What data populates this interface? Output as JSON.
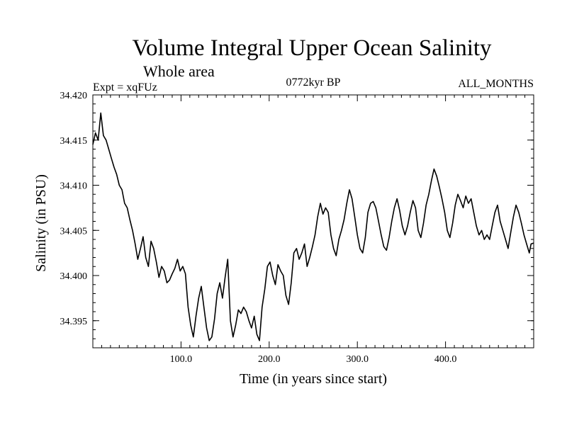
{
  "chart_data": {
    "type": "line",
    "title": "Volume Integral Upper Ocean Salinity",
    "subtitle": "Whole area",
    "expt_label": "Expt = xqFUz",
    "period_label": "0772kyr BP",
    "months_label": "ALL_MONTHS",
    "xlabel": "Time (in years since start)",
    "ylabel": "Salinity (in PSU)",
    "xlim": [
      0,
      500
    ],
    "ylim": [
      34.392,
      34.42
    ],
    "x_ticks": [
      100,
      200,
      300,
      400
    ],
    "x_tick_labels": [
      "100.0",
      "200.0",
      "300.0",
      "400.0"
    ],
    "y_ticks": [
      34.395,
      34.4,
      34.405,
      34.41,
      34.415,
      34.42
    ],
    "y_tick_labels": [
      "34.395",
      "34.400",
      "34.405",
      "34.410",
      "34.415",
      "34.420"
    ],
    "series": [
      {
        "name": "Salinity",
        "color": "#000000",
        "points": [
          [
            0,
            34.4145
          ],
          [
            3,
            34.4158
          ],
          [
            6,
            34.415
          ],
          [
            9,
            34.418
          ],
          [
            12,
            34.4155
          ],
          [
            15,
            34.415
          ],
          [
            18,
            34.414
          ],
          [
            21,
            34.413
          ],
          [
            24,
            34.412
          ],
          [
            27,
            34.4112
          ],
          [
            30,
            34.41
          ],
          [
            33,
            34.4095
          ],
          [
            36,
            34.408
          ],
          [
            39,
            34.4075
          ],
          [
            42,
            34.4062
          ],
          [
            45,
            34.405
          ],
          [
            48,
            34.4035
          ],
          [
            51,
            34.4018
          ],
          [
            54,
            34.403
          ],
          [
            57,
            34.4043
          ],
          [
            60,
            34.402
          ],
          [
            63,
            34.401
          ],
          [
            66,
            34.4038
          ],
          [
            69,
            34.403
          ],
          [
            72,
            34.4015
          ],
          [
            75,
            34.3998
          ],
          [
            78,
            34.401
          ],
          [
            81,
            34.4005
          ],
          [
            84,
            34.3992
          ],
          [
            87,
            34.3995
          ],
          [
            90,
            34.4002
          ],
          [
            93,
            34.4008
          ],
          [
            96,
            34.4018
          ],
          [
            99,
            34.4005
          ],
          [
            102,
            34.401
          ],
          [
            105,
            34.4002
          ],
          [
            108,
            34.3965
          ],
          [
            111,
            34.3945
          ],
          [
            114,
            34.3932
          ],
          [
            117,
            34.3955
          ],
          [
            120,
            34.3975
          ],
          [
            123,
            34.3988
          ],
          [
            126,
            34.3965
          ],
          [
            129,
            34.3942
          ],
          [
            132,
            34.3928
          ],
          [
            135,
            34.3932
          ],
          [
            138,
            34.3952
          ],
          [
            141,
            34.398
          ],
          [
            144,
            34.3992
          ],
          [
            147,
            34.3975
          ],
          [
            150,
            34.3998
          ],
          [
            153,
            34.4018
          ],
          [
            156,
            34.395
          ],
          [
            159,
            34.3932
          ],
          [
            162,
            34.3945
          ],
          [
            165,
            34.3962
          ],
          [
            168,
            34.3958
          ],
          [
            171,
            34.3965
          ],
          [
            174,
            34.396
          ],
          [
            177,
            34.395
          ],
          [
            180,
            34.3942
          ],
          [
            183,
            34.3955
          ],
          [
            186,
            34.3935
          ],
          [
            189,
            34.3928
          ],
          [
            192,
            34.3965
          ],
          [
            195,
            34.3985
          ],
          [
            198,
            34.401
          ],
          [
            201,
            34.4015
          ],
          [
            204,
            34.4
          ],
          [
            207,
            34.399
          ],
          [
            210,
            34.4012
          ],
          [
            213,
            34.4005
          ],
          [
            216,
            34.4
          ],
          [
            219,
            34.3978
          ],
          [
            222,
            34.3968
          ],
          [
            225,
            34.3992
          ],
          [
            228,
            34.4025
          ],
          [
            231,
            34.403
          ],
          [
            234,
            34.4018
          ],
          [
            237,
            34.4025
          ],
          [
            240,
            34.4035
          ],
          [
            243,
            34.401
          ],
          [
            246,
            34.402
          ],
          [
            249,
            34.4032
          ],
          [
            252,
            34.4045
          ],
          [
            255,
            34.4065
          ],
          [
            258,
            34.408
          ],
          [
            261,
            34.4068
          ],
          [
            264,
            34.4075
          ],
          [
            267,
            34.407
          ],
          [
            270,
            34.4045
          ],
          [
            273,
            34.403
          ],
          [
            276,
            34.4022
          ],
          [
            279,
            34.404
          ],
          [
            282,
            34.405
          ],
          [
            285,
            34.4062
          ],
          [
            288,
            34.408
          ],
          [
            291,
            34.4095
          ],
          [
            294,
            34.4085
          ],
          [
            297,
            34.4065
          ],
          [
            300,
            34.4045
          ],
          [
            303,
            34.403
          ],
          [
            306,
            34.4025
          ],
          [
            309,
            34.4042
          ],
          [
            312,
            34.407
          ],
          [
            315,
            34.408
          ],
          [
            318,
            34.4082
          ],
          [
            321,
            34.4075
          ],
          [
            324,
            34.406
          ],
          [
            327,
            34.4045
          ],
          [
            330,
            34.4032
          ],
          [
            333,
            34.4028
          ],
          [
            336,
            34.4042
          ],
          [
            339,
            34.406
          ],
          [
            342,
            34.4075
          ],
          [
            345,
            34.4085
          ],
          [
            348,
            34.4072
          ],
          [
            351,
            34.4055
          ],
          [
            354,
            34.4045
          ],
          [
            357,
            34.4055
          ],
          [
            360,
            34.407
          ],
          [
            363,
            34.4083
          ],
          [
            366,
            34.4075
          ],
          [
            369,
            34.405
          ],
          [
            372,
            34.4042
          ],
          [
            375,
            34.4058
          ],
          [
            378,
            34.4078
          ],
          [
            381,
            34.409
          ],
          [
            384,
            34.4105
          ],
          [
            387,
            34.4118
          ],
          [
            390,
            34.411
          ],
          [
            393,
            34.4098
          ],
          [
            396,
            34.4085
          ],
          [
            399,
            34.407
          ],
          [
            402,
            34.405
          ],
          [
            405,
            34.4042
          ],
          [
            408,
            34.4058
          ],
          [
            411,
            34.4078
          ],
          [
            414,
            34.409
          ],
          [
            417,
            34.4083
          ],
          [
            420,
            34.4075
          ],
          [
            423,
            34.4088
          ],
          [
            426,
            34.408
          ],
          [
            429,
            34.4085
          ],
          [
            432,
            34.407
          ],
          [
            435,
            34.4055
          ],
          [
            438,
            34.4045
          ],
          [
            441,
            34.405
          ],
          [
            444,
            34.404
          ],
          [
            447,
            34.4045
          ],
          [
            450,
            34.404
          ],
          [
            453,
            34.4055
          ],
          [
            456,
            34.407
          ],
          [
            459,
            34.4078
          ],
          [
            462,
            34.406
          ],
          [
            465,
            34.405
          ],
          [
            468,
            34.404
          ],
          [
            471,
            34.403
          ],
          [
            474,
            34.4048
          ],
          [
            477,
            34.4065
          ],
          [
            480,
            34.4078
          ],
          [
            483,
            34.407
          ],
          [
            486,
            34.4058
          ],
          [
            489,
            34.4045
          ],
          [
            492,
            34.4035
          ],
          [
            495,
            34.4025
          ],
          [
            497,
            34.4035
          ],
          [
            500,
            34.4036
          ]
        ]
      }
    ]
  }
}
